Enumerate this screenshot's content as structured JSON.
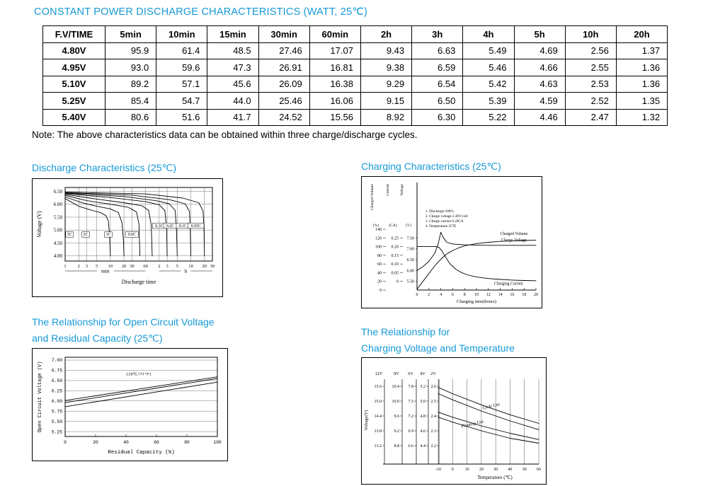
{
  "colors": {
    "accent": "#1699d6"
  },
  "header": {
    "title": "CONSTANT POWER DISCHARGE CHARACTERISTICS (WATT, 25℃)"
  },
  "table": {
    "headers": [
      "F.V/TIME",
      "5min",
      "10min",
      "15min",
      "30min",
      "60min",
      "2h",
      "3h",
      "4h",
      "5h",
      "10h",
      "20h"
    ],
    "rows": [
      [
        "4.80V",
        "95.9",
        "61.4",
        "48.5",
        "27.46",
        "17.07",
        "9.43",
        "6.63",
        "5.49",
        "4.69",
        "2.56",
        "1.37"
      ],
      [
        "4.95V",
        "93.0",
        "59.6",
        "47.3",
        "26.91",
        "16.81",
        "9.38",
        "6.59",
        "5.46",
        "4.66",
        "2.55",
        "1.36"
      ],
      [
        "5.10V",
        "89.2",
        "57.1",
        "45.6",
        "26.09",
        "16.38",
        "9.29",
        "6.54",
        "5.42",
        "4.63",
        "2.53",
        "1.36"
      ],
      [
        "5.25V",
        "85.4",
        "54.7",
        "44.0",
        "25.46",
        "16.06",
        "9.15",
        "6.50",
        "5.39",
        "4.59",
        "2.52",
        "1.35"
      ],
      [
        "5.40V",
        "80.6",
        "51.6",
        "41.7",
        "24.52",
        "15.56",
        "8.92",
        "6.30",
        "5.22",
        "4.46",
        "2.47",
        "1.32"
      ]
    ]
  },
  "note": "Note: The above characteristics data can be obtained within three charge/discharge cycles.",
  "sections": {
    "discharge_title": "Discharge Characteristics (25℃)",
    "charging_title": "Charging Characteristics (25℃)",
    "ocv_title1": "The Relationship for Open Circuit Voltage",
    "ocv_title2": "and Residual Capacity (25℃)",
    "cvt_title1": "The Relationship for",
    "cvt_title2": "Charging Voltage and Temperature"
  },
  "chart_data": [
    {
      "id": "discharge",
      "type": "line",
      "title": "Discharge Characteristics (25℃)",
      "ylabel": "Voltage (V)",
      "y_ticks": [
        6.5,
        6.0,
        5.5,
        5.0,
        4.5,
        4.0
      ],
      "ylim": [
        3.8,
        6.65
      ],
      "xlabel": "Discharge time",
      "x_scale": "log (1 min to 30 h)",
      "x_units": [
        {
          "label": "min",
          "ticks": [
            1,
            2,
            3,
            5,
            10,
            20,
            30,
            60
          ]
        },
        {
          "label": "h",
          "ticks": [
            2,
            3,
            5,
            10,
            20,
            30
          ]
        }
      ],
      "series": [
        {
          "name": "3C",
          "points": [
            [
              1,
              6.22
            ],
            [
              2,
              5.92
            ],
            [
              4,
              5.76
            ],
            [
              6,
              5.68
            ],
            [
              8,
              5.56
            ],
            [
              9,
              5.35
            ],
            [
              9.6,
              4.8
            ],
            [
              10,
              4.0
            ]
          ],
          "label_at": [
            1.25,
            4.78
          ]
        },
        {
          "name": "2C",
          "points": [
            [
              1,
              6.28
            ],
            [
              2.5,
              6.05
            ],
            [
              5,
              5.92
            ],
            [
              10,
              5.82
            ],
            [
              15,
              5.68
            ],
            [
              18,
              5.3
            ],
            [
              19.5,
              4.6
            ],
            [
              20,
              4.0
            ]
          ],
          "label_at": [
            2.85,
            4.78
          ]
        },
        {
          "name": "1C",
          "points": [
            [
              1,
              6.34
            ],
            [
              3,
              6.14
            ],
            [
              10,
              6.0
            ],
            [
              25,
              5.88
            ],
            [
              38,
              5.7
            ],
            [
              43,
              5.2
            ],
            [
              45,
              4.0
            ]
          ],
          "label_at": [
            9,
            4.78
          ]
        },
        {
          "name": "0.6C",
          "points": [
            [
              1,
              6.38
            ],
            [
              5,
              6.2
            ],
            [
              20,
              6.06
            ],
            [
              50,
              5.94
            ],
            [
              70,
              5.76
            ],
            [
              80,
              5.2
            ],
            [
              84,
              4.0
            ]
          ],
          "label_at": [
            30,
            4.78
          ]
        },
        {
          "name": "0.3C",
          "points": [
            [
              1,
              6.41
            ],
            [
              10,
              6.26
            ],
            [
              60,
              6.1
            ],
            [
              120,
              5.98
            ],
            [
              160,
              5.76
            ],
            [
              175,
              5.1
            ],
            [
              180,
              4.0
            ]
          ],
          "label_at": [
            120,
            5.12
          ]
        },
        {
          "name": "0.2C",
          "points": [
            [
              1,
              6.43
            ],
            [
              20,
              6.3
            ],
            [
              100,
              6.14
            ],
            [
              200,
              6.02
            ],
            [
              270,
              5.76
            ],
            [
              290,
              5.0
            ],
            [
              300,
              4.0
            ]
          ],
          "label_at": [
            210,
            5.12
          ]
        },
        {
          "name": "0.1C",
          "points": [
            [
              1,
              6.45
            ],
            [
              30,
              6.35
            ],
            [
              200,
              6.18
            ],
            [
              450,
              6.02
            ],
            [
              560,
              5.72
            ],
            [
              585,
              5.0
            ],
            [
              600,
              4.0
            ]
          ],
          "label_at": [
            400,
            5.12
          ]
        },
        {
          "name": "0.05C",
          "points": [
            [
              1,
              6.47
            ],
            [
              60,
              6.4
            ],
            [
              400,
              6.24
            ],
            [
              900,
              6.06
            ],
            [
              1120,
              5.74
            ],
            [
              1175,
              5.0
            ],
            [
              1200,
              4.0
            ]
          ],
          "label_at": [
            780,
            5.12
          ]
        }
      ]
    },
    {
      "id": "charging",
      "type": "line",
      "title": "Charging Characteristics (25℃)",
      "axes": [
        {
          "label": "Charged Volume",
          "unit": "(%)",
          "ticks": [
            140,
            120,
            100,
            80,
            60,
            40,
            20,
            0
          ]
        },
        {
          "label": "Current",
          "unit": "(CA)",
          "ticks": [
            0.25,
            0.2,
            0.15,
            0.1,
            0.05,
            0
          ]
        },
        {
          "label": "Voltage",
          "unit": "(V)",
          "ticks": [
            7.5,
            7.0,
            6.5,
            6.0,
            5.5
          ]
        }
      ],
      "xlabel": "Charging time(hours)",
      "x_ticks": [
        0,
        2,
        4,
        6,
        8,
        10,
        12,
        14,
        16,
        18,
        20
      ],
      "notes": [
        "1. Discharge:100%",
        "2. Charge voltage 2.40V/cell",
        "3. Charge current 0.20CA",
        "4. Temperature 25℃"
      ],
      "series": [
        {
          "name": "Charged Volume",
          "points_levels": [
            [
              0,
              2
            ],
            [
              1,
              20
            ],
            [
              2,
              38
            ],
            [
              3,
              56
            ],
            [
              4,
              71
            ],
            [
              5,
              83
            ],
            [
              6,
              91
            ],
            [
              7,
              97
            ],
            [
              8,
              102
            ],
            [
              10,
              107
            ],
            [
              12,
              110
            ],
            [
              14,
              112
            ],
            [
              16,
              113
            ],
            [
              18,
              114
            ],
            [
              20,
              115
            ]
          ],
          "label_at": [
            16.3,
            127
          ]
        },
        {
          "name": "Charge Voltage",
          "points_levels": [
            [
              0,
              45
            ],
            [
              1,
              54
            ],
            [
              2,
              66
            ],
            [
              3,
              85
            ],
            [
              3.6,
              108
            ],
            [
              4,
              133
            ],
            [
              4.4,
              121
            ],
            [
              5,
              110
            ],
            [
              6,
              106
            ],
            [
              8,
              104
            ],
            [
              12,
              103
            ],
            [
              16,
              103
            ],
            [
              20,
              103
            ]
          ],
          "label_at": [
            16.3,
            112
          ]
        },
        {
          "name": "Charging Current",
          "points_levels": [
            [
              0,
              100
            ],
            [
              3.2,
              100
            ],
            [
              3.7,
              98
            ],
            [
              4.2,
              90
            ],
            [
              4.8,
              76
            ],
            [
              5.5,
              61
            ],
            [
              6.5,
              48
            ],
            [
              7.5,
              40
            ],
            [
              8.5,
              35
            ],
            [
              10,
              30
            ],
            [
              12,
              26.5
            ],
            [
              14,
              24.5
            ],
            [
              16,
              23
            ],
            [
              18,
              22
            ],
            [
              20,
              21.5
            ]
          ],
          "label_at": [
            15.4,
            12
          ]
        }
      ]
    },
    {
      "id": "ocv",
      "type": "line",
      "title": "The Relationship for Open Circuit Voltage and Residual Capacity (25℃)",
      "ylabel": "Open Circuit Voltage (V)",
      "y_ticks": [
        7.0,
        6.75,
        6.5,
        6.25,
        6.0,
        5.75,
        5.5,
        5.25
      ],
      "ylim": [
        5.13,
        7.07
      ],
      "xlabel": "Residual Capacity (%)",
      "x_ticks": [
        0,
        20,
        40,
        60,
        80,
        100
      ],
      "annotation": "(25℃/77°F)",
      "annotation_at": [
        40,
        6.63
      ],
      "series": [
        {
          "name": "upper",
          "points": [
            [
              0,
              6.01
            ],
            [
              100,
              6.59
            ]
          ]
        },
        {
          "name": "middle",
          "points": [
            [
              0,
              5.96
            ],
            [
              100,
              6.55
            ]
          ]
        },
        {
          "name": "lower",
          "points": [
            [
              0,
              5.86
            ],
            [
              100,
              6.46
            ]
          ]
        }
      ]
    },
    {
      "id": "cvt",
      "type": "line",
      "title": "The Relationship for Charging Voltage and Temperature",
      "ylabel": "Voltage(V)",
      "scale_headers": [
        "12V",
        "8V",
        "6V",
        "4V",
        "2V"
      ],
      "scale_rows": [
        [
          "15.6",
          "10.4",
          "7.8",
          "5.2",
          "2.6"
        ],
        [
          "15.0",
          "10.0",
          "7.5",
          "5.0",
          "2.5"
        ],
        [
          "14.4",
          "9.6",
          "7.2",
          "4.8",
          "2.4"
        ],
        [
          "13.8",
          "9.2",
          "6.9",
          "4.6",
          "2.3"
        ],
        [
          "13.2",
          "8.8",
          "6.6",
          "4.4",
          "2.2"
        ]
      ],
      "xlabel": "Temperature (℃)",
      "x_ticks": [
        -10,
        0,
        10,
        20,
        30,
        40,
        50,
        60
      ],
      "series": [
        {
          "name": "Cycle Use upper",
          "points": [
            [
              -10,
              15.55
            ],
            [
              0,
              15.3
            ],
            [
              20,
              14.85
            ],
            [
              40,
              14.45
            ],
            [
              60,
              14.1
            ]
          ]
        },
        {
          "name": "Cycle Use lower",
          "points": [
            [
              -10,
              15.3
            ],
            [
              0,
              15.05
            ],
            [
              20,
              14.6
            ],
            [
              40,
              14.2
            ],
            [
              60,
              13.85
            ]
          ]
        },
        {
          "name": "Floating Use upper",
          "points": [
            [
              -10,
              14.55
            ],
            [
              0,
              14.35
            ],
            [
              20,
              14.0
            ],
            [
              40,
              13.7
            ],
            [
              60,
              13.45
            ]
          ]
        },
        {
          "name": "Floating Use lower",
          "points": [
            [
              -10,
              14.35
            ],
            [
              0,
              14.15
            ],
            [
              20,
              13.8
            ],
            [
              40,
              13.5
            ],
            [
              60,
              13.3
            ]
          ]
        }
      ],
      "line_labels": [
        {
          "text": "Cycle Use",
          "at": [
            27,
            14.75
          ]
        },
        {
          "text": "Floating Use",
          "at": [
            14,
            14.03
          ]
        }
      ]
    }
  ]
}
